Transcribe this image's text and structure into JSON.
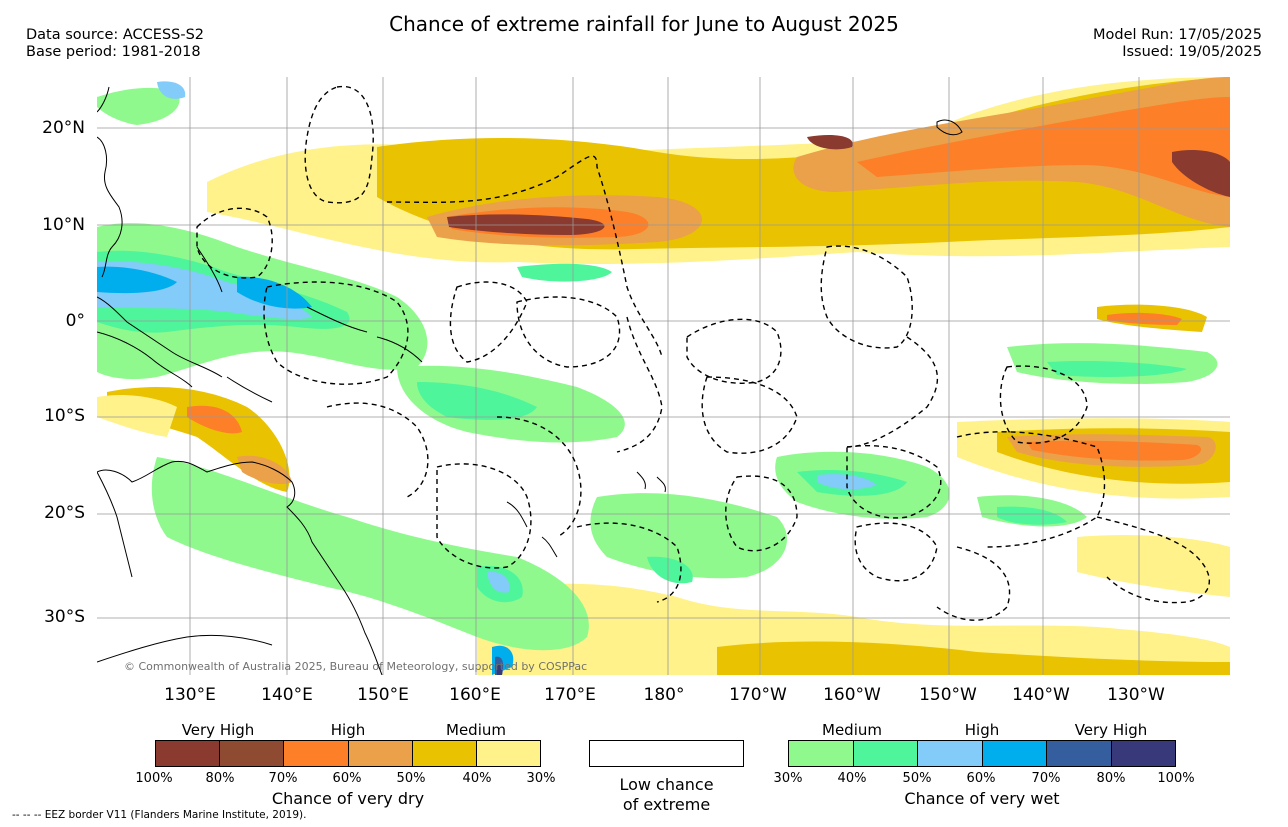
{
  "header": {
    "title": "Chance of extreme rainfall for June to August 2025",
    "data_source": "Data source: ACCESS-S2",
    "base_period": "Base period: 1981-2018",
    "model_run": "Model Run: 17/05/2025",
    "issued": "Issued: 19/05/2025"
  },
  "map": {
    "lat_labels": [
      "20°N",
      "10°N",
      "0°",
      "10°S",
      "20°S",
      "30°S"
    ],
    "lon_labels": [
      "130°E",
      "140°E",
      "150°E",
      "160°E",
      "170°E",
      "180°",
      "170°W",
      "160°W",
      "150°W",
      "140°W",
      "130°W"
    ],
    "copyright": "© Commonwealth of Australia 2025, Bureau of Meteorology, supported by COSPPac"
  },
  "legend": {
    "dry": {
      "headers": [
        "Very High",
        "High",
        "Medium"
      ],
      "ticks": [
        "100%",
        "80%",
        "70%",
        "60%",
        "50%",
        "40%",
        "30%"
      ],
      "colors": [
        "#8a3a2e",
        "#8f4a32",
        "#fd7f28",
        "#eba04a",
        "#e9c202",
        "#fff28a"
      ],
      "caption": "Chance of very dry"
    },
    "low": {
      "caption_line1": "Low chance",
      "caption_line2": "of extreme"
    },
    "wet": {
      "headers": [
        "Medium",
        "High",
        "Very High"
      ],
      "ticks": [
        "30%",
        "40%",
        "50%",
        "60%",
        "70%",
        "80%",
        "100%"
      ],
      "colors": [
        "#8ff98e",
        "#4ef59a",
        "#83cbf8",
        "#00aeee",
        "#355e9f",
        "#38397a"
      ],
      "caption": "Chance of very wet"
    }
  },
  "footnote": "-- -- -- EEZ border V11 (Flanders Marine Institute, 2019)."
}
